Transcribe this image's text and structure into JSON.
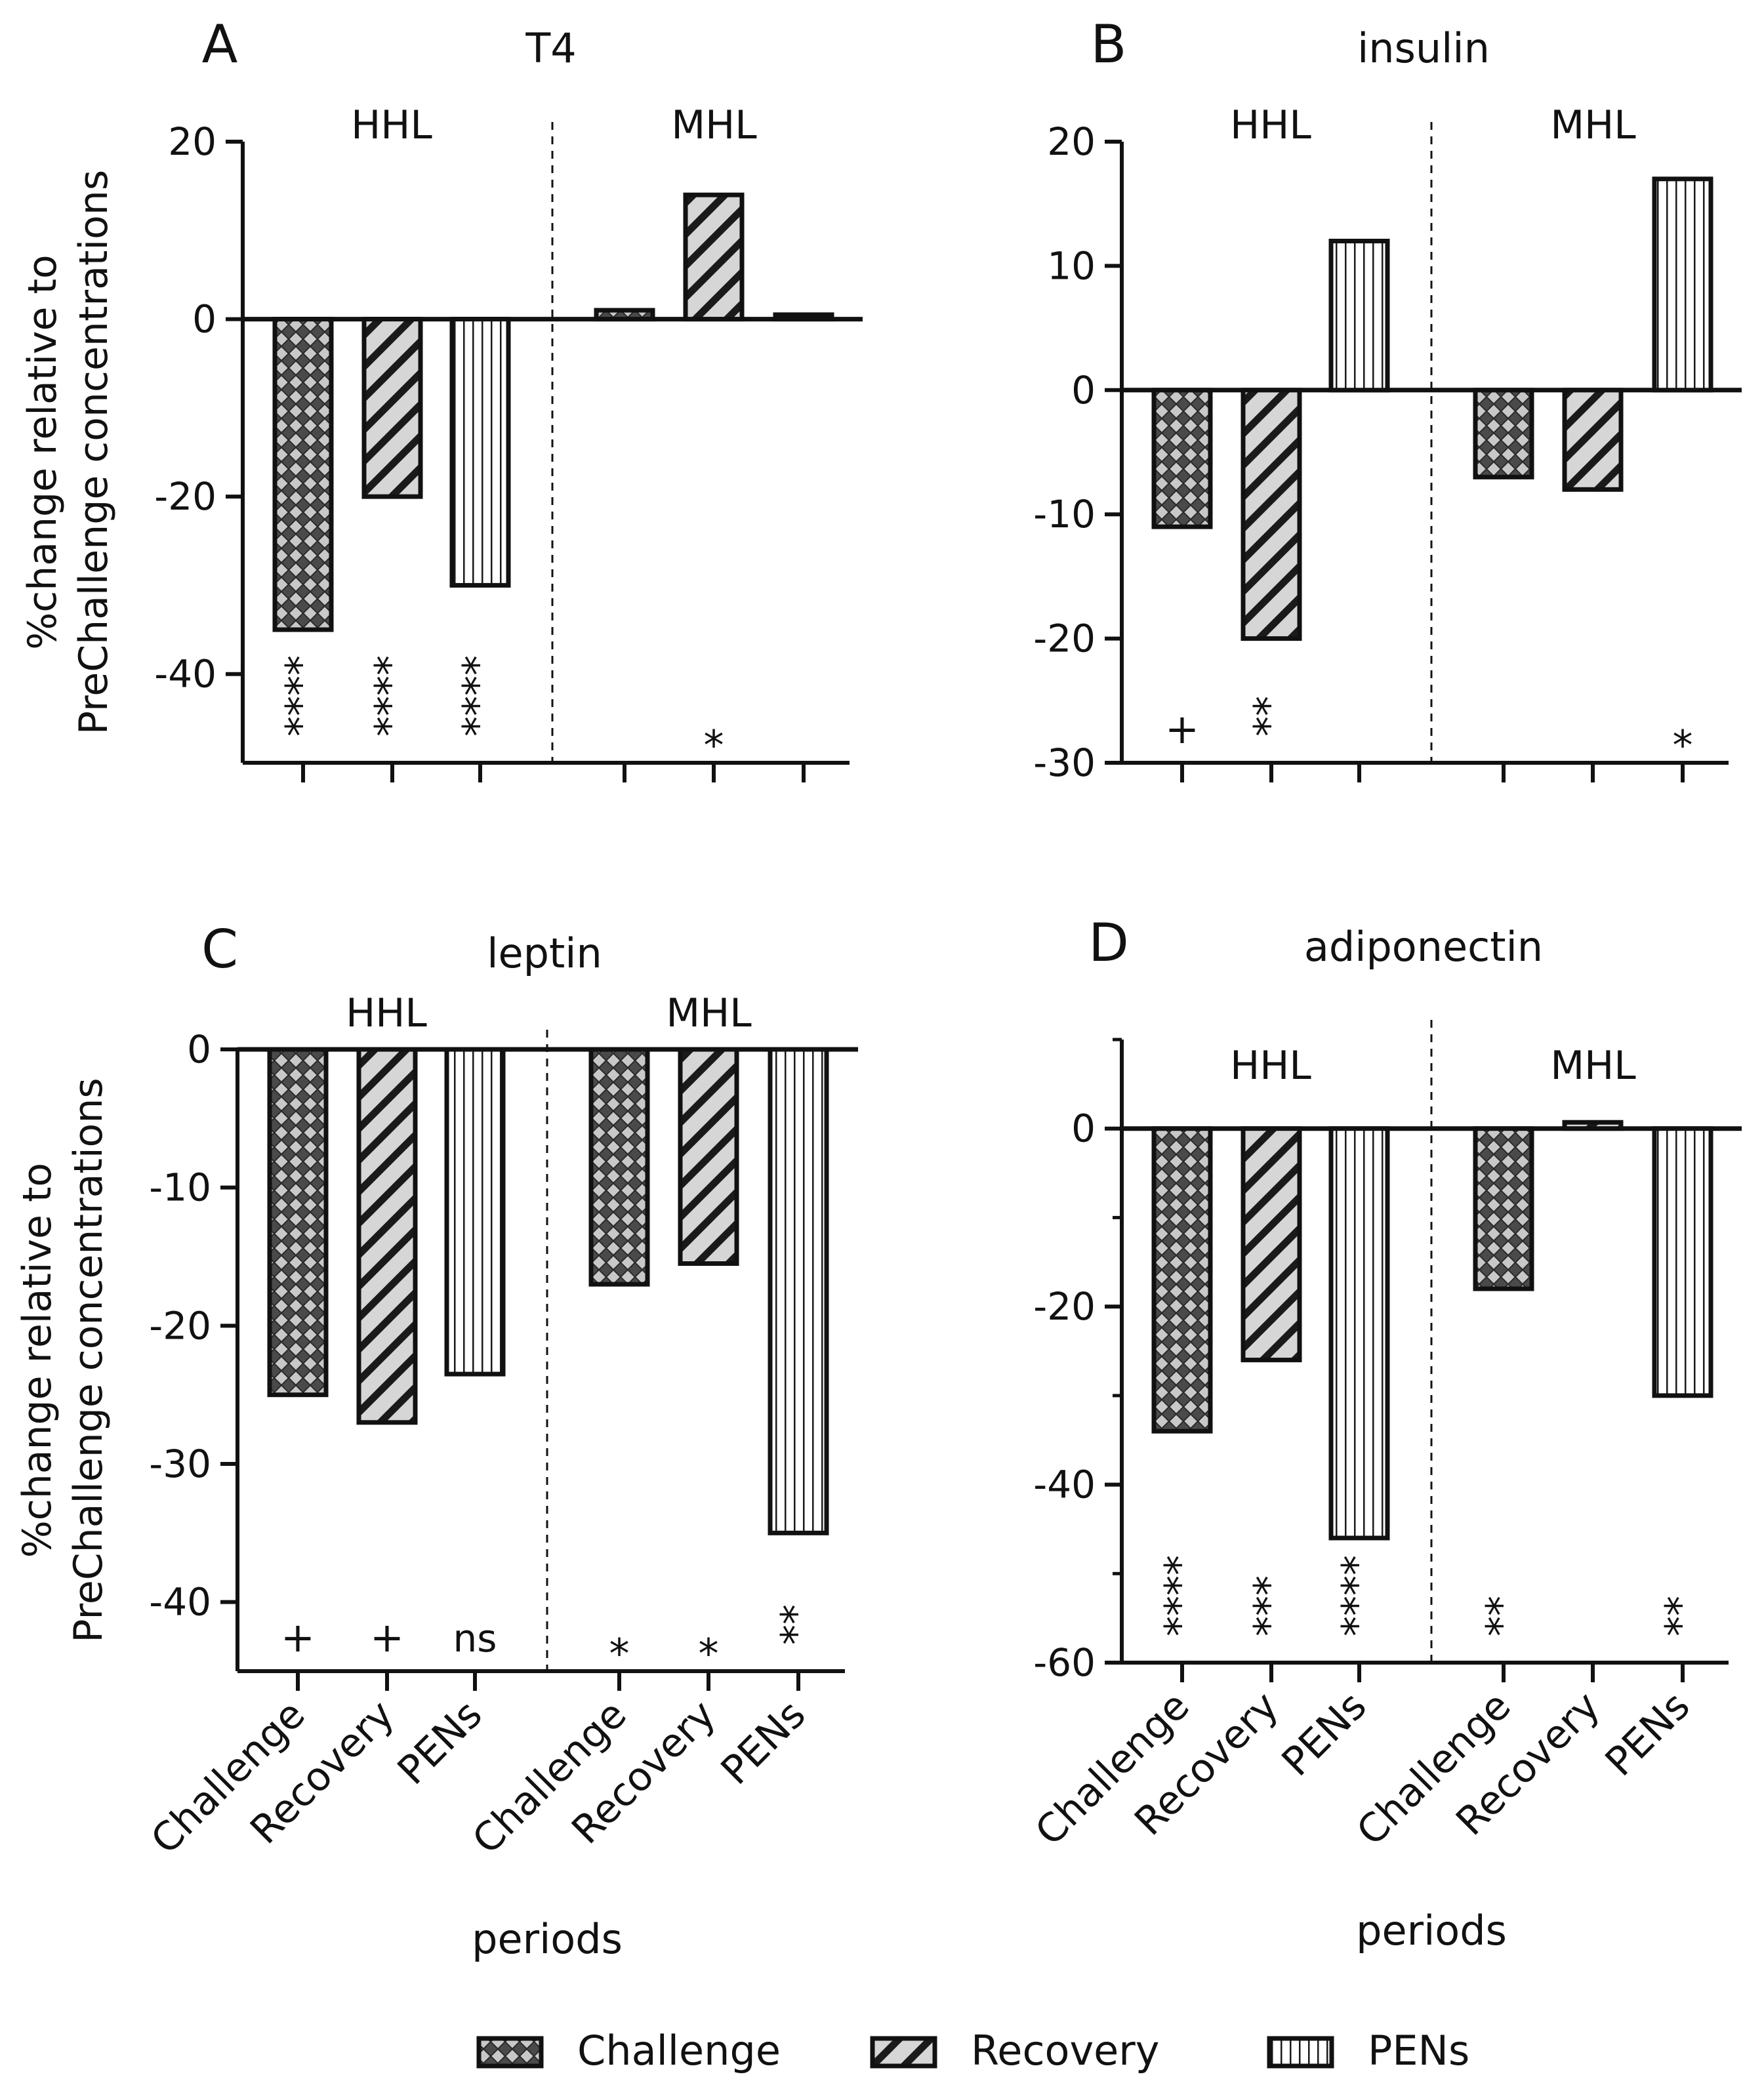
{
  "chart_data": [
    {
      "panel_letter": "A",
      "title": "T4",
      "type": "bar",
      "ylabel_lines": [
        "%change relative to",
        "PreChallenge concentrations"
      ],
      "xlabel": "",
      "ylim": [
        -50,
        20
      ],
      "yticks": [
        20,
        0,
        -20,
        -40
      ],
      "groups": [
        {
          "name": "HHL",
          "categories": [
            "Challenge",
            "Recovery",
            "PENs"
          ],
          "values": [
            -35,
            -20,
            -30
          ],
          "significance": [
            "****",
            "****",
            "****"
          ]
        },
        {
          "name": "MHL",
          "categories": [
            "Challenge",
            "Recovery",
            "PENs"
          ],
          "values": [
            1,
            14,
            0.5
          ],
          "significance": [
            "",
            "*",
            ""
          ]
        }
      ],
      "show_category_labels": false
    },
    {
      "panel_letter": "B",
      "title": "insulin",
      "type": "bar",
      "ylabel_lines": [],
      "xlabel": "",
      "ylim": [
        -30,
        20
      ],
      "yticks": [
        20,
        10,
        0,
        -10,
        -20,
        -30
      ],
      "groups": [
        {
          "name": "HHL",
          "categories": [
            "Challenge",
            "Recovery",
            "PENs"
          ],
          "values": [
            -11,
            -20,
            12
          ],
          "significance": [
            "+",
            "**",
            ""
          ]
        },
        {
          "name": "MHL",
          "categories": [
            "Challenge",
            "Recovery",
            "PENs"
          ],
          "values": [
            -7,
            -8,
            17
          ],
          "significance": [
            "",
            "",
            "*"
          ]
        }
      ],
      "show_category_labels": false
    },
    {
      "panel_letter": "C",
      "title": "leptin",
      "type": "bar",
      "ylabel_lines": [
        "%change relative to",
        "PreChallenge concentrations"
      ],
      "xlabel": "periods",
      "ylim": [
        -45,
        0
      ],
      "yticks": [
        0,
        -10,
        -20,
        -30,
        -40
      ],
      "groups": [
        {
          "name": "HHL",
          "categories": [
            "Challenge",
            "Recovery",
            "PENs"
          ],
          "values": [
            -25,
            -27,
            -23.5
          ],
          "significance": [
            "+",
            "+",
            "ns"
          ]
        },
        {
          "name": "MHL",
          "categories": [
            "Challenge",
            "Recovery",
            "PENs"
          ],
          "values": [
            -17,
            -15.5,
            -35
          ],
          "significance": [
            "*",
            "*",
            "**"
          ]
        }
      ],
      "show_category_labels": true
    },
    {
      "panel_letter": "D",
      "title": "adiponectin",
      "type": "bar",
      "ylabel_lines": [],
      "xlabel": "periods",
      "ylim": [
        -60,
        10
      ],
      "yticks": [
        0,
        -20,
        -40,
        -60
      ],
      "groups": [
        {
          "name": "HHL",
          "categories": [
            "Challenge",
            "Recovery",
            "PENs"
          ],
          "values": [
            -34,
            -26,
            -46
          ],
          "significance": [
            "****",
            "***",
            "****"
          ]
        },
        {
          "name": "MHL",
          "categories": [
            "Challenge",
            "Recovery",
            "PENs"
          ],
          "values": [
            -18,
            0.7,
            -30
          ],
          "significance": [
            "**",
            "",
            "**"
          ]
        }
      ],
      "show_category_labels": true
    }
  ],
  "legend": {
    "placement": "bottom",
    "items": [
      {
        "label": "Challenge",
        "pattern": "crosshatch"
      },
      {
        "label": "Recovery",
        "pattern": "diagonal"
      },
      {
        "label": "PENs",
        "pattern": "vertical"
      }
    ]
  },
  "colors": {
    "bar_fill_dark": "#505050",
    "bar_fill_light": "#d4d4d4",
    "bar_fill_white": "#ffffff",
    "stroke": "#111111"
  }
}
